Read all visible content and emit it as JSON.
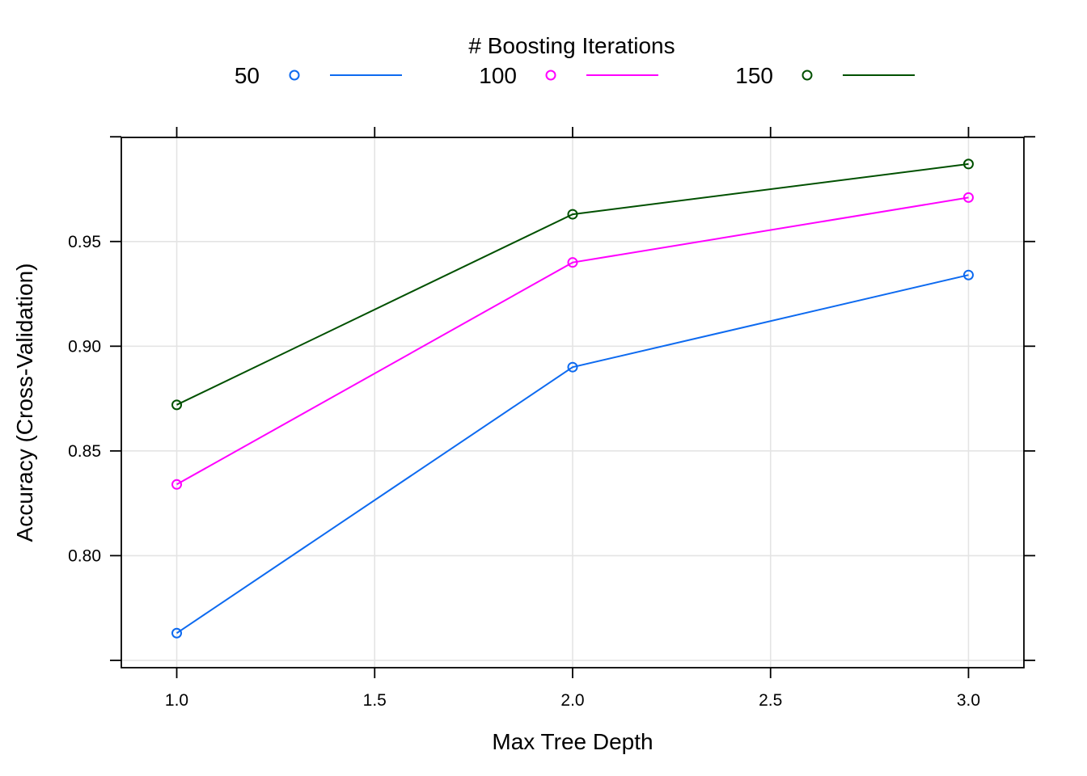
{
  "chart_data": {
    "type": "line",
    "legend": {
      "title": "# Boosting Iterations",
      "placement": "top"
    },
    "xlabel": "Max Tree Depth",
    "ylabel": "Accuracy (Cross-Validation)",
    "xlim": [
      0.86,
      3.14
    ],
    "ylim": [
      0.7465,
      0.9997
    ],
    "x_ticks": [
      1.0,
      1.5,
      2.0,
      2.5,
      3.0
    ],
    "x_tick_labels": [
      "1.0",
      "1.5",
      "2.0",
      "2.5",
      "3.0"
    ],
    "y_ticks": [
      0.75,
      0.8,
      0.85,
      0.9,
      0.95,
      1.0
    ],
    "y_tick_labels": [
      "",
      "0.80",
      "0.85",
      "0.90",
      "0.95",
      ""
    ],
    "grid": true,
    "x": [
      1,
      2,
      3
    ],
    "series": [
      {
        "name": "50",
        "color": "#0d6af0",
        "values": [
          0.763,
          0.89,
          0.934
        ]
      },
      {
        "name": "100",
        "color": "#ff00ff",
        "values": [
          0.834,
          0.94,
          0.971
        ]
      },
      {
        "name": "150",
        "color": "#005000",
        "values": [
          0.872,
          0.963,
          0.987
        ]
      }
    ]
  }
}
